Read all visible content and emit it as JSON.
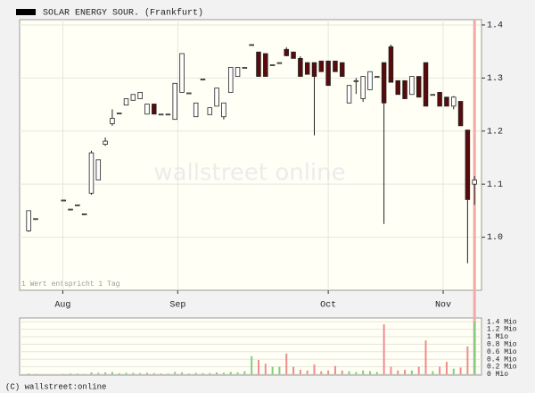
{
  "chart_data": {
    "type": "candlestick",
    "name": "SOLAR ENERGY SOUR. (Frankfurt)",
    "note": "1 Wert entspricht 1 Tag",
    "watermark": "wallstreet online",
    "footer": "(C) wallstreet:online",
    "x": [
      0,
      1,
      5,
      6,
      7,
      8,
      9,
      10,
      11,
      12,
      13,
      14,
      15,
      16,
      17,
      18,
      19,
      20,
      21,
      22,
      23,
      24,
      25,
      26,
      27,
      28,
      29,
      30,
      31,
      32,
      33,
      34,
      35,
      36,
      37,
      38,
      39,
      40,
      41,
      42,
      43,
      44,
      45,
      46,
      47,
      48,
      49,
      50,
      51,
      52,
      53,
      54,
      55,
      56,
      57,
      58,
      59,
      60,
      61,
      62,
      63,
      64
    ],
    "open": [
      1.012,
      1.035,
      1.07,
      1.053,
      1.061,
      1.044,
      1.083,
      1.108,
      1.175,
      1.214,
      1.234,
      1.249,
      1.258,
      1.261,
      1.232,
      1.251,
      1.232,
      1.232,
      1.222,
      1.273,
      1.272,
      1.227,
      1.298,
      1.231,
      1.247,
      1.227,
      1.273,
      1.303,
      1.32,
      1.363,
      1.349,
      1.346,
      1.325,
      1.329,
      1.354,
      1.349,
      1.337,
      1.329,
      1.329,
      1.332,
      1.332,
      1.332,
      1.329,
      1.253,
      1.295,
      1.261,
      1.278,
      1.303,
      1.329,
      1.359,
      1.295,
      1.295,
      1.269,
      1.303,
      1.329,
      1.269,
      1.273,
      1.264,
      1.247,
      1.256,
      1.202,
      1.1
    ],
    "high": [
      1.05,
      1.035,
      1.07,
      1.053,
      1.061,
      1.044,
      1.163,
      1.146,
      1.188,
      1.241,
      1.234,
      1.261,
      1.269,
      1.273,
      1.251,
      1.251,
      1.232,
      1.232,
      1.29,
      1.346,
      1.272,
      1.253,
      1.298,
      1.244,
      1.281,
      1.253,
      1.32,
      1.32,
      1.32,
      1.363,
      1.349,
      1.346,
      1.325,
      1.329,
      1.358,
      1.349,
      1.341,
      1.329,
      1.329,
      1.332,
      1.332,
      1.332,
      1.329,
      1.286,
      1.3,
      1.303,
      1.312,
      1.303,
      1.329,
      1.363,
      1.295,
      1.295,
      1.303,
      1.303,
      1.329,
      1.269,
      1.273,
      1.264,
      1.266,
      1.256,
      1.202,
      1.115
    ],
    "low": [
      1.01,
      1.035,
      1.07,
      1.053,
      1.061,
      1.044,
      1.08,
      1.108,
      1.172,
      1.21,
      1.234,
      1.249,
      1.258,
      1.261,
      1.232,
      1.232,
      1.232,
      1.232,
      1.222,
      1.273,
      1.272,
      1.227,
      1.298,
      1.231,
      1.247,
      1.222,
      1.273,
      1.303,
      1.32,
      1.363,
      1.303,
      1.303,
      1.325,
      1.329,
      1.341,
      1.337,
      1.303,
      1.307,
      1.192,
      1.312,
      1.286,
      1.312,
      1.303,
      1.253,
      1.27,
      1.255,
      1.278,
      1.303,
      1.025,
      1.292,
      1.269,
      1.261,
      1.269,
      1.264,
      1.247,
      1.269,
      1.247,
      1.247,
      1.241,
      1.21,
      0.951,
      1.061
    ],
    "close": [
      1.05,
      1.035,
      1.07,
      1.053,
      1.061,
      1.044,
      1.159,
      1.146,
      1.181,
      1.224,
      1.234,
      1.261,
      1.269,
      1.273,
      1.251,
      1.232,
      1.232,
      1.232,
      1.29,
      1.346,
      1.272,
      1.253,
      1.298,
      1.244,
      1.281,
      1.253,
      1.32,
      1.32,
      1.32,
      1.363,
      1.303,
      1.303,
      1.325,
      1.329,
      1.342,
      1.337,
      1.303,
      1.307,
      1.303,
      1.312,
      1.286,
      1.312,
      1.303,
      1.286,
      1.295,
      1.303,
      1.312,
      1.303,
      1.253,
      1.292,
      1.269,
      1.261,
      1.303,
      1.264,
      1.247,
      1.269,
      1.247,
      1.247,
      1.264,
      1.21,
      1.071,
      1.108
    ],
    "xlim": [
      -1.3,
      65
    ],
    "xticks": [
      {
        "value": 4.9,
        "label": "Aug"
      },
      {
        "value": 21.4,
        "label": "Sep"
      },
      {
        "value": 43,
        "label": "Oct"
      },
      {
        "value": 59.5,
        "label": "Nov"
      }
    ],
    "ylim": [
      0.9,
      1.41
    ],
    "yticks": [
      {
        "value": 1,
        "label": "1.0"
      },
      1.1,
      1.2,
      1.3,
      1.4
    ],
    "up_color": "#ffffff",
    "down_color": "#5a0a0a",
    "legend_color": "#000000",
    "highlight_color": "#f4a8a8",
    "volume": {
      "values": [
        0.02,
        0.01,
        0.01,
        0.02,
        0.02,
        0.01,
        0.05,
        0.04,
        0.05,
        0.06,
        0.03,
        0.04,
        0.04,
        0.03,
        0.04,
        0.03,
        0.02,
        0.02,
        0.06,
        0.05,
        0.02,
        0.04,
        0.03,
        0.03,
        0.05,
        0.04,
        0.06,
        0.05,
        0.08,
        0.48,
        0.38,
        0.28,
        0.2,
        0.2,
        0.55,
        0.2,
        0.12,
        0.1,
        0.26,
        0.08,
        0.1,
        0.22,
        0.1,
        0.08,
        0.06,
        0.1,
        0.08,
        0.06,
        1.33,
        0.2,
        0.1,
        0.12,
        0.1,
        0.2,
        0.9,
        0.08,
        0.2,
        0.33,
        0.15,
        0.18,
        0.74,
        1.4
      ],
      "ylim": [
        0,
        1.5
      ],
      "yticks": [
        {
          "value": 0,
          "label": "0 Mio"
        },
        {
          "value": 0.2,
          "label": "0.2 Mio"
        },
        {
          "value": 0.4,
          "label": "0.4 Mio"
        },
        {
          "value": 0.6,
          "label": "0.6 Mio"
        },
        {
          "value": 0.8,
          "label": "0.8 Mio"
        },
        {
          "value": 1,
          "label": "1 Mio"
        },
        {
          "value": 1.2,
          "label": "1.2 Mio"
        },
        {
          "value": 1.4,
          "label": "1.4 Mio"
        }
      ],
      "up_color": "#7ccf7c",
      "down_color": "#f08c8c"
    }
  }
}
